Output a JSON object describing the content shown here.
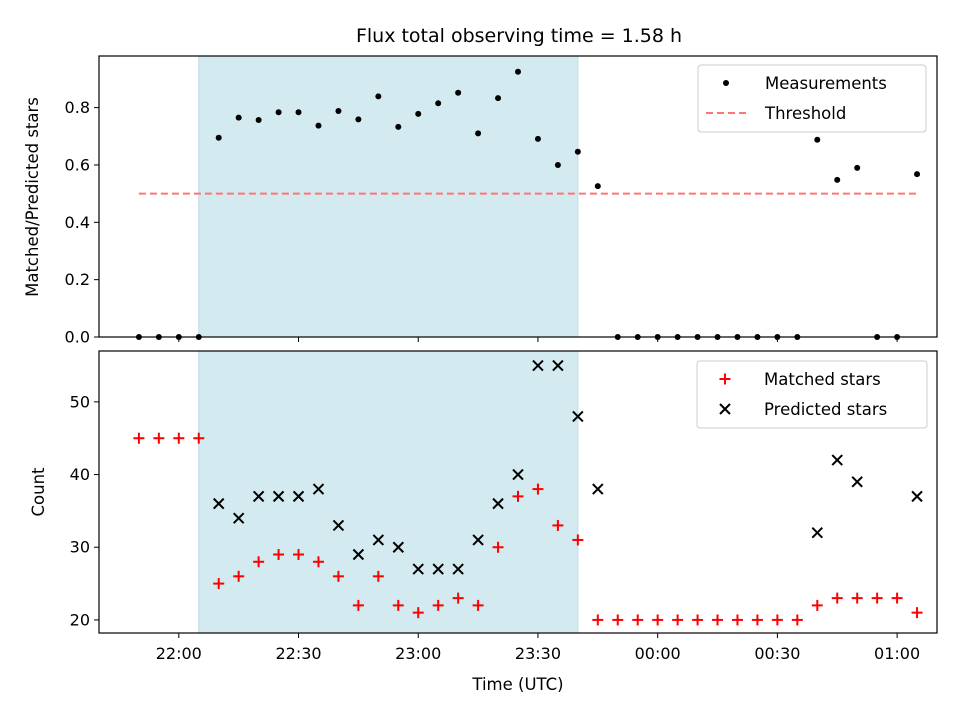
{
  "title": "Flux total observing time = 1.58 h",
  "chart_data": [
    {
      "type": "scatter",
      "ylabel": "Matched/Predicted stars",
      "xlabel": "",
      "xlim": [
        "21:40",
        "01:10"
      ],
      "ylim": [
        0,
        0.98
      ],
      "yticks": [
        0.0,
        0.2,
        0.4,
        0.6,
        0.8
      ],
      "ytick_labels": [
        "0.0",
        "0.2",
        "0.4",
        "0.6",
        "0.8"
      ],
      "shaded_span": [
        "22:05",
        "23:40"
      ],
      "legend_position": "top-right",
      "series": [
        {
          "name": "Measurements",
          "marker": "dot",
          "color": "#000000",
          "points": [
            [
              "21:50",
              0.0
            ],
            [
              "21:55",
              0.0
            ],
            [
              "22:00",
              0.0
            ],
            [
              "22:05",
              0.0
            ],
            [
              "22:10",
              0.695
            ],
            [
              "22:15",
              0.765
            ],
            [
              "22:20",
              0.757
            ],
            [
              "22:25",
              0.784
            ],
            [
              "22:30",
              0.784
            ],
            [
              "22:35",
              0.737
            ],
            [
              "22:40",
              0.788
            ],
            [
              "22:45",
              0.759
            ],
            [
              "22:50",
              0.839
            ],
            [
              "22:55",
              0.733
            ],
            [
              "23:00",
              0.778
            ],
            [
              "23:05",
              0.815
            ],
            [
              "23:10",
              0.852
            ],
            [
              "23:15",
              0.71
            ],
            [
              "23:20",
              0.833
            ],
            [
              "23:25",
              0.925
            ],
            [
              "23:30",
              0.691
            ],
            [
              "23:35",
              0.6
            ],
            [
              "23:40",
              0.646
            ],
            [
              "23:45",
              0.526
            ],
            [
              "23:50",
              0.0
            ],
            [
              "23:55",
              0.0
            ],
            [
              "00:00",
              0.0
            ],
            [
              "00:05",
              0.0
            ],
            [
              "00:10",
              0.0
            ],
            [
              "00:15",
              0.0
            ],
            [
              "00:20",
              0.0
            ],
            [
              "00:25",
              0.0
            ],
            [
              "00:30",
              0.0
            ],
            [
              "00:35",
              0.0
            ],
            [
              "00:40",
              0.688
            ],
            [
              "00:45",
              0.548
            ],
            [
              "00:50",
              0.59
            ],
            [
              "00:55",
              0.0
            ],
            [
              "01:00",
              0.0
            ],
            [
              "01:05",
              0.568
            ]
          ]
        },
        {
          "name": "Threshold",
          "marker": "dashed-line",
          "color": "#ff7575",
          "points": [
            [
              "21:50",
              0.5
            ],
            [
              "01:05",
              0.5
            ]
          ]
        }
      ]
    },
    {
      "type": "scatter",
      "ylabel": "Count",
      "xlabel": "Time (UTC)",
      "xlim": [
        "21:40",
        "01:10"
      ],
      "ylim": [
        18.2,
        57
      ],
      "yticks": [
        20,
        30,
        40,
        50
      ],
      "ytick_labels": [
        "20",
        "30",
        "40",
        "50"
      ],
      "xticks": [
        "22:00",
        "22:30",
        "23:00",
        "23:30",
        "00:00",
        "00:30",
        "01:00"
      ],
      "xtick_labels": [
        "22:00",
        "22:30",
        "23:00",
        "23:30",
        "00:00",
        "00:30",
        "01:00"
      ],
      "shaded_span": [
        "22:05",
        "23:40"
      ],
      "legend_position": "top-right",
      "series": [
        {
          "name": "Matched stars",
          "marker": "plus",
          "color": "#ff0000",
          "points": [
            [
              "21:50",
              45
            ],
            [
              "21:55",
              45
            ],
            [
              "22:00",
              45
            ],
            [
              "22:05",
              45
            ],
            [
              "22:10",
              25
            ],
            [
              "22:15",
              26
            ],
            [
              "22:20",
              28
            ],
            [
              "22:25",
              29
            ],
            [
              "22:30",
              29
            ],
            [
              "22:35",
              28
            ],
            [
              "22:40",
              26
            ],
            [
              "22:45",
              22
            ],
            [
              "22:50",
              26
            ],
            [
              "22:55",
              22
            ],
            [
              "23:00",
              21
            ],
            [
              "23:05",
              22
            ],
            [
              "23:10",
              23
            ],
            [
              "23:15",
              22
            ],
            [
              "23:20",
              30
            ],
            [
              "23:25",
              37
            ],
            [
              "23:30",
              38
            ],
            [
              "23:35",
              33
            ],
            [
              "23:40",
              31
            ],
            [
              "23:45",
              20
            ],
            [
              "23:50",
              20
            ],
            [
              "23:55",
              20
            ],
            [
              "00:00",
              20
            ],
            [
              "00:05",
              20
            ],
            [
              "00:10",
              20
            ],
            [
              "00:15",
              20
            ],
            [
              "00:20",
              20
            ],
            [
              "00:25",
              20
            ],
            [
              "00:30",
              20
            ],
            [
              "00:35",
              20
            ],
            [
              "00:40",
              22
            ],
            [
              "00:45",
              23
            ],
            [
              "00:50",
              23
            ],
            [
              "00:55",
              23
            ],
            [
              "01:00",
              23
            ],
            [
              "01:05",
              21
            ]
          ]
        },
        {
          "name": "Predicted stars",
          "marker": "x",
          "color": "#000000",
          "points": [
            [
              "22:10",
              36
            ],
            [
              "22:15",
              34
            ],
            [
              "22:20",
              37
            ],
            [
              "22:25",
              37
            ],
            [
              "22:30",
              37
            ],
            [
              "22:35",
              38
            ],
            [
              "22:40",
              33
            ],
            [
              "22:45",
              29
            ],
            [
              "22:50",
              31
            ],
            [
              "22:55",
              30
            ],
            [
              "23:00",
              27
            ],
            [
              "23:05",
              27
            ],
            [
              "23:10",
              27
            ],
            [
              "23:15",
              31
            ],
            [
              "23:20",
              36
            ],
            [
              "23:25",
              40
            ],
            [
              "23:30",
              55
            ],
            [
              "23:35",
              55
            ],
            [
              "23:40",
              48
            ],
            [
              "23:45",
              38
            ],
            [
              "00:40",
              32
            ],
            [
              "00:45",
              42
            ],
            [
              "00:50",
              39
            ],
            [
              "01:05",
              37
            ]
          ]
        }
      ]
    }
  ],
  "colors": {
    "shade": "#d3eaf0",
    "shade_edge": "#bcdde6",
    "legend_border": "#cccccc"
  }
}
